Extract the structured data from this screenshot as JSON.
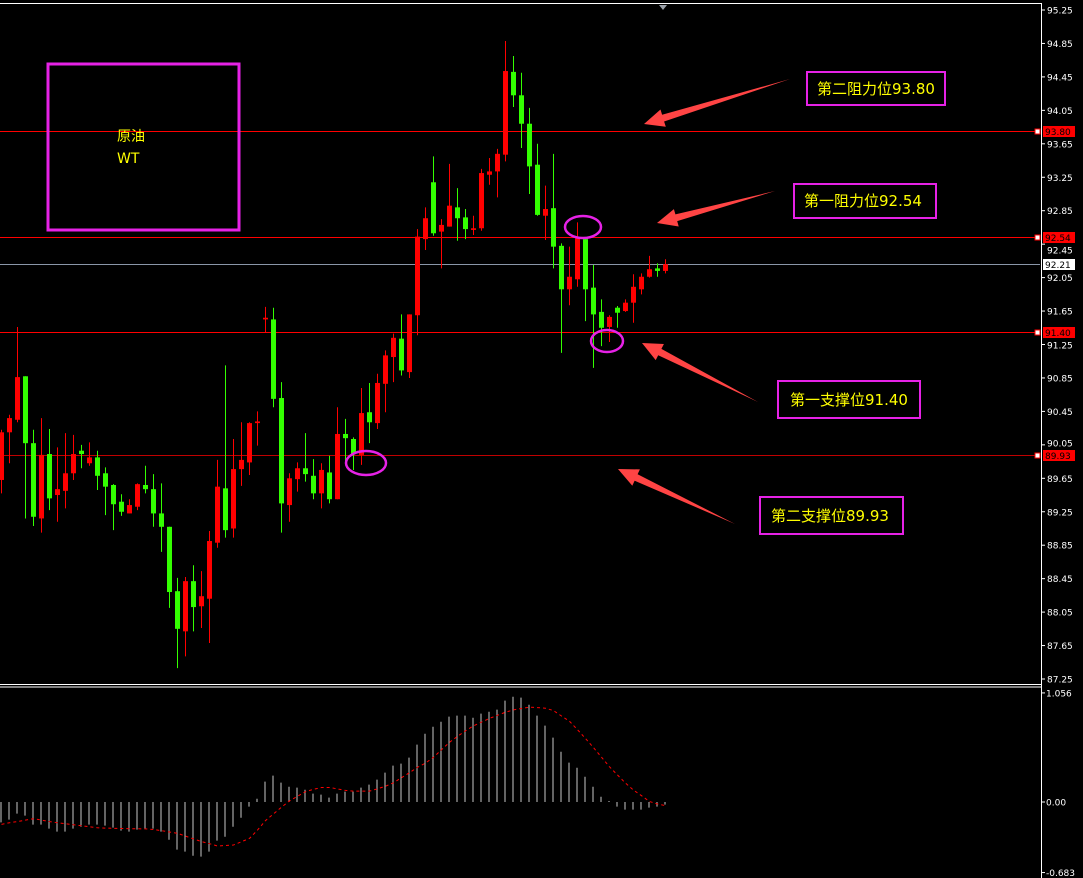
{
  "chart_data": [
    {
      "type": "candlestick",
      "title": "",
      "ylim": [
        87.25,
        95.25
      ],
      "y_ticks": [
        "95.25",
        "94.85",
        "94.45",
        "94.05",
        "93.65",
        "93.25",
        "92.85",
        "92.45",
        "92.05",
        "91.65",
        "91.25",
        "90.85",
        "90.45",
        "90.05",
        "89.65",
        "89.25",
        "88.85",
        "88.45",
        "88.05",
        "87.65",
        "87.25"
      ],
      "grid": false,
      "colors": {
        "up": "#ff0000",
        "down": "#33ff00",
        "background": "#000000",
        "axis": "#ffffff"
      },
      "ohlc": [
        [
          89.63,
          90.23,
          89.47,
          90.2
        ],
        [
          90.2,
          90.41,
          89.83,
          90.37
        ],
        [
          90.35,
          91.46,
          90.32,
          90.86
        ],
        [
          90.87,
          90.87,
          89.17,
          90.07
        ],
        [
          90.07,
          90.23,
          89.08,
          89.19
        ],
        [
          89.17,
          90.37,
          89.0,
          89.93
        ],
        [
          89.94,
          90.24,
          89.27,
          89.41
        ],
        [
          89.45,
          90.02,
          89.13,
          89.52
        ],
        [
          89.5,
          90.19,
          89.29,
          89.71
        ],
        [
          89.71,
          90.17,
          89.63,
          89.94
        ],
        [
          89.98,
          90.05,
          89.77,
          89.94
        ],
        [
          89.83,
          90.08,
          89.8,
          89.9
        ],
        [
          89.9,
          89.98,
          89.51,
          89.68
        ],
        [
          89.71,
          89.78,
          89.21,
          89.55
        ],
        [
          89.57,
          89.58,
          89.03,
          89.34
        ],
        [
          89.37,
          89.46,
          89.2,
          89.25
        ],
        [
          89.23,
          89.4,
          89.23,
          89.33
        ],
        [
          89.31,
          89.59,
          89.27,
          89.58
        ],
        [
          89.57,
          89.8,
          89.47,
          89.52
        ],
        [
          89.52,
          89.7,
          89.07,
          89.23
        ],
        [
          89.23,
          89.59,
          88.77,
          89.07
        ],
        [
          89.07,
          89.07,
          88.1,
          88.29
        ],
        [
          88.3,
          88.46,
          87.38,
          87.85
        ],
        [
          87.82,
          88.47,
          87.52,
          88.42
        ],
        [
          88.42,
          88.61,
          87.82,
          88.11
        ],
        [
          88.12,
          88.54,
          87.86,
          88.24
        ],
        [
          88.21,
          89.02,
          87.68,
          88.9
        ],
        [
          88.88,
          89.87,
          88.82,
          89.55
        ],
        [
          89.53,
          91.0,
          88.94,
          89.03
        ],
        [
          89.05,
          90.12,
          88.94,
          89.76
        ],
        [
          89.76,
          90.32,
          89.56,
          89.87
        ],
        [
          89.84,
          90.32,
          89.69,
          90.31
        ],
        [
          90.31,
          90.45,
          90.04,
          90.33
        ],
        [
          91.55,
          91.7,
          91.39,
          91.57
        ],
        [
          91.55,
          91.69,
          90.5,
          90.6
        ],
        [
          90.61,
          90.8,
          89.0,
          89.35
        ],
        [
          89.33,
          89.71,
          89.13,
          89.65
        ],
        [
          89.64,
          89.84,
          89.49,
          89.77
        ],
        [
          89.77,
          90.19,
          89.61,
          89.7
        ],
        [
          89.68,
          89.88,
          89.4,
          89.47
        ],
        [
          89.47,
          89.83,
          89.29,
          89.75
        ],
        [
          89.72,
          89.92,
          89.35,
          89.4
        ],
        [
          89.4,
          90.5,
          89.4,
          90.18
        ],
        [
          90.18,
          90.36,
          89.83,
          90.13
        ],
        [
          90.12,
          90.14,
          89.75,
          89.94
        ],
        [
          89.93,
          90.73,
          89.81,
          90.43
        ],
        [
          90.44,
          90.79,
          90.07,
          90.32
        ],
        [
          90.31,
          90.9,
          90.24,
          90.79
        ],
        [
          90.78,
          91.18,
          90.44,
          91.12
        ],
        [
          91.1,
          91.38,
          90.8,
          91.33
        ],
        [
          91.32,
          91.61,
          90.88,
          90.94
        ],
        [
          90.92,
          91.61,
          90.85,
          91.61
        ],
        [
          91.6,
          92.63,
          91.36,
          92.54
        ],
        [
          92.51,
          92.89,
          92.38,
          92.76
        ],
        [
          93.19,
          93.5,
          92.55,
          92.58
        ],
        [
          92.6,
          92.75,
          92.16,
          92.68
        ],
        [
          92.66,
          93.41,
          92.66,
          92.91
        ],
        [
          92.89,
          93.12,
          92.49,
          92.76
        ],
        [
          92.77,
          92.87,
          92.51,
          92.63
        ],
        [
          92.62,
          92.79,
          92.56,
          92.64
        ],
        [
          92.64,
          93.35,
          92.61,
          93.3
        ],
        [
          93.28,
          93.48,
          93.16,
          93.32
        ],
        [
          93.32,
          93.59,
          93.01,
          93.53
        ],
        [
          93.52,
          94.88,
          93.44,
          94.52
        ],
        [
          94.51,
          94.7,
          94.09,
          94.23
        ],
        [
          94.23,
          94.5,
          93.6,
          93.89
        ],
        [
          93.89,
          94.08,
          93.05,
          93.38
        ],
        [
          93.4,
          93.65,
          92.79,
          92.8
        ],
        [
          92.79,
          93.15,
          92.5,
          92.87
        ],
        [
          92.88,
          93.53,
          92.16,
          92.42
        ],
        [
          92.43,
          92.46,
          91.15,
          91.91
        ],
        [
          91.91,
          92.42,
          91.72,
          92.06
        ],
        [
          92.03,
          92.71,
          91.94,
          92.52
        ],
        [
          92.51,
          92.52,
          91.53,
          91.91
        ],
        [
          91.93,
          92.2,
          90.97,
          91.61
        ],
        [
          91.64,
          91.79,
          91.23,
          91.45
        ],
        [
          91.46,
          91.6,
          91.28,
          91.58
        ],
        [
          91.69,
          91.71,
          91.45,
          91.63
        ],
        [
          91.65,
          91.79,
          91.64,
          91.75
        ],
        [
          91.75,
          92.09,
          91.51,
          91.94
        ],
        [
          91.91,
          92.1,
          91.85,
          92.06
        ],
        [
          92.06,
          92.31,
          92.05,
          92.15
        ],
        [
          92.16,
          92.22,
          92.06,
          92.13
        ],
        [
          92.13,
          92.27,
          92.1,
          92.21
        ]
      ],
      "levels": [
        {
          "price": "93.80",
          "color": "#ff0000",
          "tag_bg": "#ff0000"
        },
        {
          "price": "92.54",
          "color": "#ff0000",
          "tag_bg": "#ff0000"
        },
        {
          "price": "92.21",
          "color": "#8a96a8",
          "tag_bg": "#ffffff"
        },
        {
          "price": "91.40",
          "color": "#ff0000",
          "tag_bg": "#ff0000"
        },
        {
          "price": "89.93",
          "color": "#c00000",
          "tag_bg": "#ff0000"
        }
      ]
    },
    {
      "type": "bar",
      "ylim": [
        -0.683,
        1.056
      ],
      "y_ticks": [
        "1.056",
        "0.00",
        "-0.683"
      ],
      "colors": {
        "histogram": "#c8c8c8",
        "signal": "#ff0000"
      },
      "histogram": [
        -0.197,
        -0.171,
        -0.113,
        -0.132,
        -0.219,
        -0.219,
        -0.258,
        -0.287,
        -0.287,
        -0.258,
        -0.239,
        -0.219,
        -0.219,
        -0.229,
        -0.248,
        -0.277,
        -0.287,
        -0.268,
        -0.258,
        -0.258,
        -0.287,
        -0.365,
        -0.461,
        -0.481,
        -0.52,
        -0.529,
        -0.481,
        -0.374,
        -0.336,
        -0.239,
        -0.152,
        -0.045,
        0.032,
        0.197,
        0.255,
        0.187,
        0.148,
        0.139,
        0.119,
        0.081,
        0.071,
        0.042,
        0.081,
        0.1,
        0.1,
        0.139,
        0.168,
        0.216,
        0.284,
        0.352,
        0.371,
        0.429,
        0.555,
        0.661,
        0.729,
        0.777,
        0.826,
        0.836,
        0.836,
        0.816,
        0.855,
        0.874,
        0.894,
        0.981,
        1.019,
        1.01,
        0.942,
        0.836,
        0.739,
        0.623,
        0.487,
        0.381,
        0.332,
        0.245,
        0.148,
        0.051,
        0.01,
        -0.045,
        -0.074,
        -0.074,
        -0.074,
        -0.055,
        -0.045,
        -0.026
      ],
      "signal": [
        -0.217,
        -0.2,
        -0.19,
        -0.175,
        -0.162,
        -0.175,
        -0.19,
        -0.2,
        -0.21,
        -0.22,
        -0.23,
        -0.24,
        -0.25,
        -0.253,
        -0.255,
        -0.257,
        -0.258,
        -0.259,
        -0.26,
        -0.266,
        -0.278,
        -0.29,
        -0.303,
        -0.33,
        -0.357,
        -0.383,
        -0.404,
        -0.426,
        -0.421,
        -0.416,
        -0.384,
        -0.352,
        -0.272,
        -0.18,
        -0.115,
        -0.05,
        0.011,
        0.055,
        0.1,
        0.123,
        0.14,
        0.14,
        0.127,
        0.112,
        0.106,
        0.106,
        0.106,
        0.128,
        0.153,
        0.186,
        0.235,
        0.284,
        0.336,
        0.377,
        0.433,
        0.506,
        0.578,
        0.635,
        0.689,
        0.737,
        0.773,
        0.809,
        0.839,
        0.869,
        0.892,
        0.905,
        0.918,
        0.914,
        0.908,
        0.885,
        0.833,
        0.781,
        0.7,
        0.615,
        0.527,
        0.434,
        0.341,
        0.261,
        0.183,
        0.115,
        0.061,
        0.005,
        -0.019,
        -0.035
      ]
    }
  ],
  "annotations": {
    "symbol_box": {
      "line1": "原油",
      "line2": "WT"
    },
    "labels": [
      {
        "text": "第二阻力位93.80"
      },
      {
        "text": "第一阻力位92.54"
      },
      {
        "text": "第一支撑位91.40"
      },
      {
        "text": "第二支撑位89.93"
      }
    ],
    "accent_color": "#e622e6",
    "text_color": "#ffff00",
    "arrow_color": "#ff4444"
  }
}
